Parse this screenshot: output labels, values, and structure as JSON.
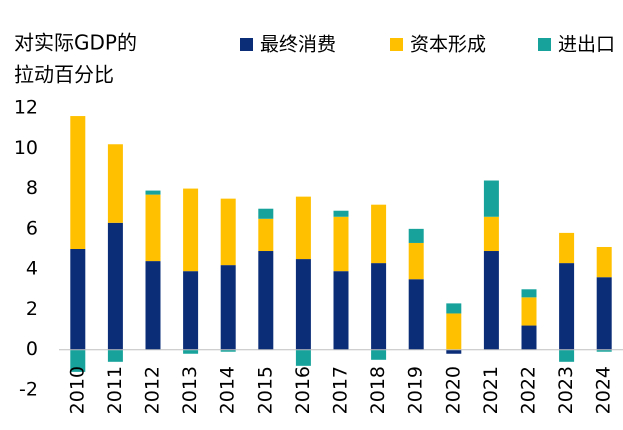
{
  "chart_data": {
    "type": "stacked_bar",
    "title": [
      "对实际GDP的",
      "拉动百分比"
    ],
    "categories": [
      "2010",
      "2011",
      "2012",
      "2013",
      "2014",
      "2015",
      "2016",
      "2017",
      "2018",
      "2019",
      "2020",
      "2021",
      "2022",
      "2023",
      "2024"
    ],
    "series": [
      {
        "name": "最终消费",
        "color": "#0b2d78",
        "values": [
          5.0,
          6.3,
          4.4,
          3.9,
          4.2,
          4.9,
          4.5,
          3.9,
          4.3,
          3.5,
          -0.2,
          4.9,
          1.2,
          4.3,
          3.6
        ]
      },
      {
        "name": "资本形成",
        "color": "#ffc000",
        "values": [
          6.6,
          3.9,
          3.3,
          4.1,
          3.3,
          1.6,
          3.1,
          2.7,
          2.9,
          1.8,
          1.8,
          1.7,
          1.4,
          1.5,
          1.5
        ]
      },
      {
        "name": "进出口",
        "color": "#17a39b",
        "values": [
          -1.1,
          -0.6,
          0.2,
          -0.2,
          -0.1,
          0.5,
          -0.8,
          0.3,
          -0.5,
          0.7,
          0.5,
          1.8,
          0.4,
          -0.6,
          -0.1
        ]
      }
    ],
    "ylim": [
      -2,
      12
    ],
    "yticks": [
      -2,
      0,
      2,
      4,
      6,
      8,
      10,
      12
    ],
    "legend": "top"
  }
}
